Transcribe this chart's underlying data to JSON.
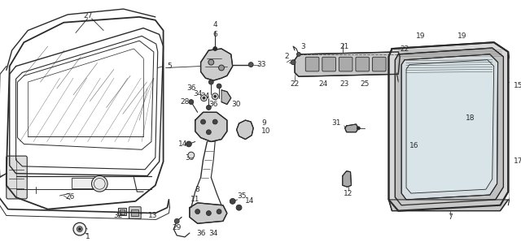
{
  "bg_color": "#ffffff",
  "line_color": "#2a2a2a",
  "fig_width": 6.4,
  "fig_height": 3.03,
  "dpi": 100
}
